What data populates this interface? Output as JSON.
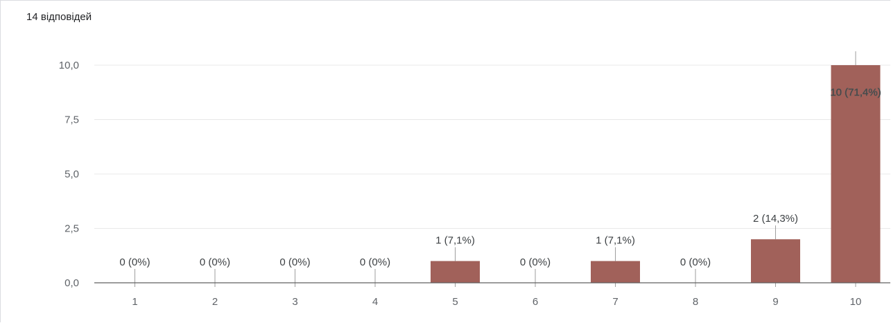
{
  "response_count": "14 відповідей",
  "chart_data": {
    "type": "bar",
    "categories": [
      "1",
      "2",
      "3",
      "4",
      "5",
      "6",
      "7",
      "8",
      "9",
      "10"
    ],
    "values": [
      0,
      0,
      0,
      0,
      1,
      0,
      1,
      0,
      2,
      10
    ],
    "data_labels": [
      "0 (0%)",
      "0 (0%)",
      "0 (0%)",
      "0 (0%)",
      "1 (7,1%)",
      "0 (0%)",
      "1 (7,1%)",
      "0 (0%)",
      "2 (14,3%)",
      "10 (71,4%)"
    ],
    "y_ticks": [
      "0,0",
      "2,5",
      "5,0",
      "7,5",
      "10,0"
    ],
    "y_tick_values": [
      0,
      2.5,
      5,
      7.5,
      10
    ],
    "ylim": [
      0,
      10
    ],
    "grid": true,
    "bar_color": "#a1615a",
    "title": "",
    "xlabel": "",
    "ylabel": ""
  }
}
